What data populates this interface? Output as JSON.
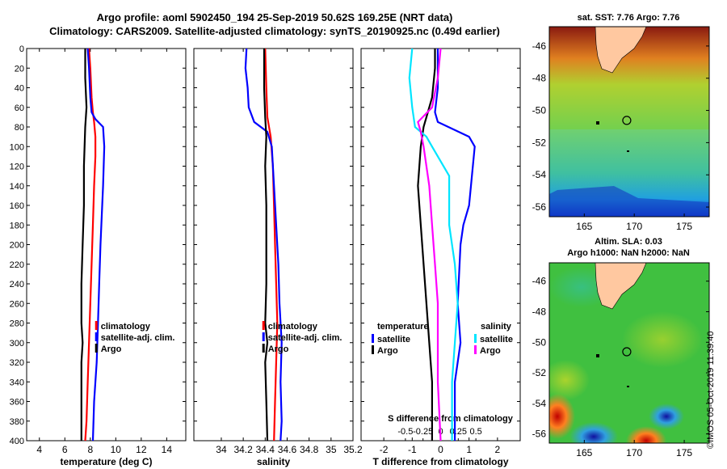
{
  "header": {
    "line1": "Argo profile: aoml 5902450_194 25-Sep-2019 50.62S 169.25E (NRT data)",
    "line2": "Climatology: CARS2009. Satellite-adjusted climatology: synTS_20190925.nc (0.49d earlier)"
  },
  "colors": {
    "climatology": "#ff0000",
    "satellite": "#0000ff",
    "argo": "#000000",
    "sal_satellite": "#00e5ff",
    "sal_argo": "#ff00ff",
    "land": "#ffc8a0"
  },
  "chart_data": [
    {
      "type": "line",
      "name": "temperature-profile",
      "xlabel": "temperature (deg C)",
      "ylabel": "depth",
      "xlim": [
        3,
        15.5
      ],
      "ylim": [
        400,
        0
      ],
      "xticks": [
        "4",
        "6",
        "8",
        "10",
        "12",
        "14"
      ],
      "xtick_values": [
        4,
        6,
        8,
        10,
        12,
        14
      ],
      "yticks": [
        "0",
        "20",
        "40",
        "60",
        "80",
        "100",
        "120",
        "140",
        "160",
        "180",
        "200",
        "220",
        "240",
        "260",
        "280",
        "300",
        "320",
        "340",
        "360",
        "380",
        "400"
      ],
      "ytick_values": [
        0,
        20,
        40,
        60,
        80,
        100,
        120,
        140,
        160,
        180,
        200,
        220,
        240,
        260,
        280,
        300,
        320,
        340,
        360,
        380,
        400
      ],
      "legend": [
        "climatology",
        "satellite-adj. clim.",
        "Argo"
      ],
      "series": [
        {
          "name": "climatology",
          "color": "#ff0000",
          "points": [
            [
              7.9,
              0
            ],
            [
              8.0,
              20
            ],
            [
              8.1,
              50
            ],
            [
              8.2,
              65
            ],
            [
              8.3,
              75
            ],
            [
              8.4,
              90
            ],
            [
              8.4,
              110
            ],
            [
              8.3,
              140
            ],
            [
              8.2,
              180
            ],
            [
              8.1,
              220
            ],
            [
              8.0,
              260
            ],
            [
              7.9,
              300
            ],
            [
              7.8,
              340
            ],
            [
              7.7,
              380
            ],
            [
              7.6,
              400
            ]
          ]
        },
        {
          "name": "satellite-adj. clim.",
          "color": "#0000ff",
          "points": [
            [
              7.8,
              0
            ],
            [
              7.9,
              20
            ],
            [
              8.0,
              50
            ],
            [
              8.1,
              65
            ],
            [
              8.4,
              72
            ],
            [
              9.0,
              80
            ],
            [
              9.1,
              100
            ],
            [
              9.0,
              140
            ],
            [
              8.9,
              170
            ],
            [
              8.8,
              200
            ],
            [
              8.7,
              240
            ],
            [
              8.6,
              280
            ],
            [
              8.5,
              320
            ],
            [
              8.3,
              360
            ],
            [
              8.2,
              400
            ]
          ]
        },
        {
          "name": "Argo",
          "color": "#000000",
          "points": [
            [
              7.6,
              0
            ],
            [
              7.6,
              30
            ],
            [
              7.7,
              60
            ],
            [
              7.6,
              80
            ],
            [
              7.5,
              120
            ],
            [
              7.5,
              160
            ],
            [
              7.4,
              200
            ],
            [
              7.3,
              240
            ],
            [
              7.3,
              280
            ],
            [
              7.4,
              300
            ],
            [
              7.3,
              320
            ],
            [
              7.3,
              360
            ],
            [
              7.3,
              400
            ]
          ]
        }
      ]
    },
    {
      "type": "line",
      "name": "salinity-profile",
      "xlabel": "salinity",
      "ylabel": "depth",
      "xlim": [
        33.75,
        35.2
      ],
      "ylim": [
        400,
        0
      ],
      "xticks": [
        "34",
        "34.2",
        "34.4",
        "34.6",
        "34.8",
        "35",
        "35.2"
      ],
      "xtick_values": [
        34,
        34.2,
        34.4,
        34.6,
        34.8,
        35,
        35.2
      ],
      "legend": [
        "climatology",
        "satellite-adj. clim.",
        "Argo"
      ],
      "series": [
        {
          "name": "climatology",
          "color": "#ff0000",
          "points": [
            [
              34.4,
              0
            ],
            [
              34.41,
              40
            ],
            [
              34.42,
              70
            ],
            [
              34.45,
              90
            ],
            [
              34.47,
              120
            ],
            [
              34.48,
              160
            ],
            [
              34.49,
              200
            ],
            [
              34.5,
              240
            ],
            [
              34.51,
              280
            ],
            [
              34.5,
              320
            ],
            [
              34.49,
              360
            ],
            [
              34.48,
              400
            ]
          ]
        },
        {
          "name": "satellite-adj. clim.",
          "color": "#0000ff",
          "points": [
            [
              34.23,
              0
            ],
            [
              34.22,
              20
            ],
            [
              34.24,
              40
            ],
            [
              34.25,
              60
            ],
            [
              34.3,
              75
            ],
            [
              34.42,
              85
            ],
            [
              34.46,
              100
            ],
            [
              34.48,
              140
            ],
            [
              34.5,
              180
            ],
            [
              34.52,
              220
            ],
            [
              34.53,
              260
            ],
            [
              34.55,
              300
            ],
            [
              34.54,
              340
            ],
            [
              34.55,
              380
            ],
            [
              34.54,
              400
            ]
          ]
        },
        {
          "name": "Argo",
          "color": "#000000",
          "points": [
            [
              34.39,
              0
            ],
            [
              34.39,
              40
            ],
            [
              34.4,
              70
            ],
            [
              34.41,
              90
            ],
            [
              34.4,
              120
            ],
            [
              34.41,
              160
            ],
            [
              34.41,
              200
            ],
            [
              34.41,
              240
            ],
            [
              34.4,
              280
            ],
            [
              34.42,
              300
            ],
            [
              34.4,
              320
            ],
            [
              34.41,
              360
            ],
            [
              34.42,
              400
            ]
          ]
        }
      ]
    },
    {
      "type": "line",
      "name": "difference-profile",
      "xlabel": "T difference from climatology",
      "xlabel2": "S difference from climatology",
      "ylabel": "depth",
      "xlim": [
        -2.8,
        2.8
      ],
      "ylim": [
        400,
        0
      ],
      "xticks": [
        "-2",
        "-1",
        "0",
        "1",
        "2"
      ],
      "xtick_values": [
        -2,
        -1,
        0,
        1,
        2
      ],
      "sticks": [
        "-0.5",
        "-0.25",
        "0",
        "0.25",
        "0.5"
      ],
      "stick_values": [
        -0.5,
        -0.25,
        0,
        0.25,
        0.5
      ],
      "legend_temperature_title": "temperature",
      "legend_salinity_title": "salinity",
      "legend_temperature": [
        "satellite",
        "Argo"
      ],
      "legend_salinity": [
        "satellite",
        "Argo"
      ],
      "series": [
        {
          "name": "T satellite",
          "color": "#0000ff",
          "points": [
            [
              -0.1,
              0
            ],
            [
              -0.1,
              40
            ],
            [
              -0.2,
              65
            ],
            [
              -0.1,
              75
            ],
            [
              1.0,
              90
            ],
            [
              1.2,
              100
            ],
            [
              1.1,
              130
            ],
            [
              1.0,
              160
            ],
            [
              0.8,
              180
            ],
            [
              0.7,
              200
            ],
            [
              0.6,
              260
            ],
            [
              0.7,
              300
            ],
            [
              0.5,
              340
            ],
            [
              0.5,
              400
            ]
          ]
        },
        {
          "name": "T Argo",
          "color": "#000000",
          "points": [
            [
              -0.2,
              0
            ],
            [
              -0.2,
              20
            ],
            [
              -0.3,
              50
            ],
            [
              -0.5,
              70
            ],
            [
              -0.6,
              80
            ],
            [
              -0.7,
              100
            ],
            [
              -0.8,
              140
            ],
            [
              -0.7,
              180
            ],
            [
              -0.6,
              220
            ],
            [
              -0.5,
              260
            ],
            [
              -0.4,
              300
            ],
            [
              -0.3,
              340
            ],
            [
              -0.3,
              400
            ]
          ]
        },
        {
          "name": "S satellite",
          "color": "#00e5ff",
          "points": [
            [
              -1.0,
              0
            ],
            [
              -1.1,
              30
            ],
            [
              -1.0,
              60
            ],
            [
              -0.9,
              80
            ],
            [
              -0.5,
              90
            ],
            [
              -0.3,
              100
            ],
            [
              0.3,
              130
            ],
            [
              0.3,
              180
            ],
            [
              0.5,
              220
            ],
            [
              0.6,
              260
            ],
            [
              0.5,
              300
            ],
            [
              0.4,
              340
            ],
            [
              0.4,
              400
            ]
          ]
        },
        {
          "name": "S Argo",
          "color": "#ff00ff",
          "points": [
            [
              0.0,
              0
            ],
            [
              -0.1,
              30
            ],
            [
              -0.3,
              60
            ],
            [
              -0.8,
              75
            ],
            [
              -0.7,
              85
            ],
            [
              -0.6,
              100
            ],
            [
              -0.4,
              140
            ],
            [
              -0.3,
              180
            ],
            [
              -0.2,
              220
            ],
            [
              -0.1,
              260
            ],
            [
              -0.1,
              300
            ],
            [
              -0.1,
              340
            ],
            [
              0.0,
              400
            ]
          ]
        }
      ]
    },
    {
      "type": "heatmap",
      "name": "sst-map",
      "title": "sat. SST: 7.76 Argo: 7.76",
      "xticks": [
        "165",
        "170",
        "175"
      ],
      "xtick_values": [
        165,
        170,
        175
      ],
      "yticks": [
        "-46",
        "-48",
        "-50",
        "-52",
        "-54",
        "-56"
      ],
      "ytick_values": [
        -46,
        -48,
        -50,
        -52,
        -54,
        -56
      ],
      "xlim": [
        161.5,
        177.5
      ],
      "ylim": [
        -56.6,
        -44.8
      ],
      "argo_position": [
        169.25,
        -50.62
      ]
    },
    {
      "type": "heatmap",
      "name": "sla-map",
      "title": "Altim. SLA: 0.03",
      "subtitle": "Argo h1000: NaN h2000: NaN",
      "xticks": [
        "165",
        "170",
        "175"
      ],
      "xtick_values": [
        165,
        170,
        175
      ],
      "yticks": [
        "-46",
        "-48",
        "-50",
        "-52",
        "-54",
        "-56"
      ],
      "ytick_values": [
        -46,
        -48,
        -50,
        -52,
        -54,
        -56
      ],
      "xlim": [
        161.5,
        177.5
      ],
      "ylim": [
        -56.6,
        -44.8
      ],
      "argo_position": [
        169.25,
        -50.62
      ]
    }
  ],
  "watermark": "©IMOS 05-Oct-2019 11:39:40"
}
